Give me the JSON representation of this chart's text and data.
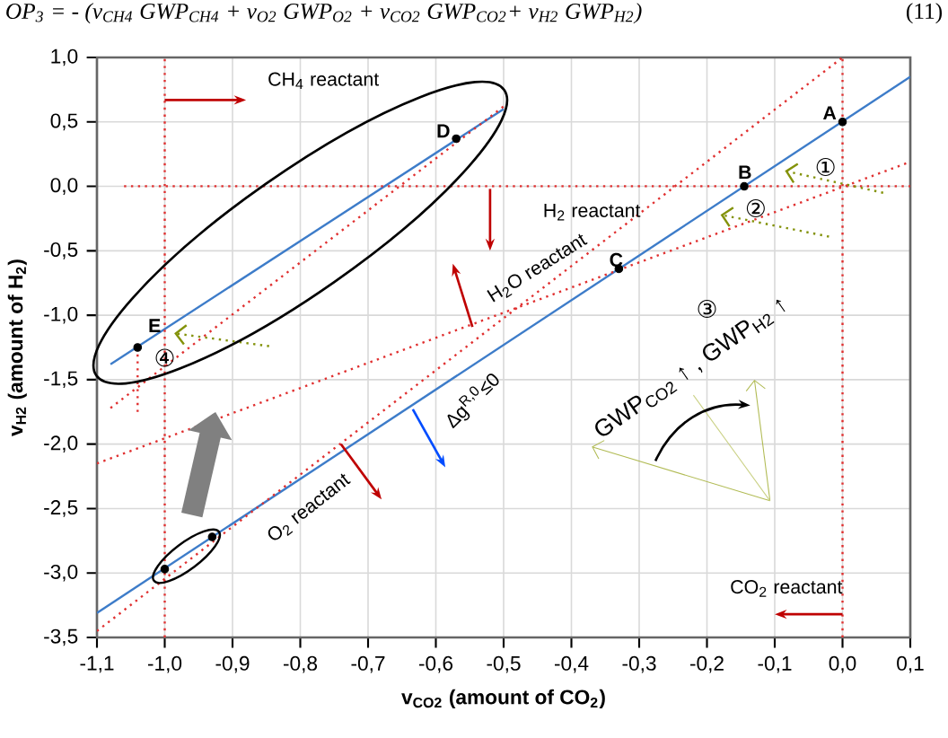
{
  "chart_data": {
    "type": "line",
    "xlabel": "v$_{CO2}$ (amount of CO$_{2}$)",
    "ylabel": "v$_{H2}$ (amount of H$_{2}$)",
    "xlim": [
      -1.1,
      0.1
    ],
    "ylim": [
      -3.5,
      1.0
    ],
    "xticks": [
      {
        "value": -1.1,
        "label": "-1,1"
      },
      {
        "value": -1.0,
        "label": "-1,0"
      },
      {
        "value": -0.9,
        "label": "-0,9"
      },
      {
        "value": -0.8,
        "label": "-0,8"
      },
      {
        "value": -0.7,
        "label": "-0,7"
      },
      {
        "value": -0.6,
        "label": "-0,6"
      },
      {
        "value": -0.5,
        "label": "-0,5"
      },
      {
        "value": -0.4,
        "label": "-0,4"
      },
      {
        "value": -0.3,
        "label": "-0,3"
      },
      {
        "value": -0.2,
        "label": "-0,2"
      },
      {
        "value": -0.1,
        "label": "-0,1"
      },
      {
        "value": 0.0,
        "label": "0,0"
      },
      {
        "value": 0.1,
        "label": "0,1"
      }
    ],
    "yticks": [
      {
        "value": -3.5,
        "label": "-3,5"
      },
      {
        "value": -3.0,
        "label": "-3,0"
      },
      {
        "value": -2.5,
        "label": "-2,5"
      },
      {
        "value": -2.0,
        "label": "-2,0"
      },
      {
        "value": -1.5,
        "label": "-1,5"
      },
      {
        "value": -1.0,
        "label": "-1,0"
      },
      {
        "value": -0.5,
        "label": "-0,5"
      },
      {
        "value": 0.0,
        "label": "0,0"
      },
      {
        "value": 0.5,
        "label": "0,5"
      },
      {
        "value": 1.0,
        "label": "1,0"
      }
    ],
    "grid": true,
    "series": [
      {
        "color": "#3d7cc9",
        "line_style": "solid",
        "x": [
          -1.1,
          0.1
        ],
        "values": [
          -3.31,
          0.85
        ]
      },
      {
        "color": "#3d7cc9",
        "line_style": "solid",
        "x": [
          -1.08,
          -0.5
        ],
        "values": [
          -1.38,
          0.6
        ]
      },
      {
        "color": "#e03030",
        "line_style": "dotted",
        "x": [
          -1.1,
          0.0
        ],
        "values": [
          -3.45,
          1.0
        ]
      },
      {
        "color": "#e03030",
        "line_style": "dotted",
        "x": [
          -1.1,
          0.1
        ],
        "values": [
          -2.15,
          0.19
        ]
      },
      {
        "color": "#e03030",
        "line_style": "dotted",
        "x": [
          -1.08,
          -0.5
        ],
        "values": [
          -1.72,
          0.62
        ]
      },
      {
        "color": "#e03030",
        "line_style": "dotted",
        "x": [
          -1.06,
          0.1
        ],
        "values": [
          0.0,
          0.0
        ]
      },
      {
        "color": "#e03030",
        "line_style": "dotted",
        "x": [
          -1.0,
          -1.0
        ],
        "values": [
          -3.5,
          1.0
        ]
      },
      {
        "color": "#e03030",
        "line_style": "dotted",
        "x": [
          0.0,
          0.0
        ],
        "values": [
          -3.5,
          1.0
        ]
      },
      {
        "color": "#e03030",
        "line_style": "dotted",
        "x": [
          -1.04,
          -1.04
        ],
        "values": [
          -1.25,
          -1.75
        ]
      },
      {
        "type": "scatter",
        "color": "#000000",
        "marker": "circle",
        "x": [
          0.0,
          -0.145,
          -0.33,
          -0.57,
          -1.04,
          -1.0,
          -0.93
        ],
        "values": [
          0.5,
          0.0,
          -0.64,
          0.37,
          -1.25,
          -2.97,
          -2.72
        ]
      }
    ],
    "annotations": [
      "OP$_{3}$ = - (v$_{CH4}$ GWP$_{CH4}$ + v$_{O2}$ GWP$_{O2}$ + v$_{CO2}$ GWP$_{CO2}$+ v$_{H2}$ GWP$_{H2}$)",
      "(11)",
      "CH$_{4}$ reactant",
      "H$_{2}$ reactant",
      "H$_{2}$O reactant",
      "O$_{2}$ reactant",
      "Δg$^{R,0}$≤0",
      "CO$_{2}$ reactant",
      "GWP$_{CO2}$ ↑ , GWP$_{H2}$ ↑",
      {
        "text": "①",
        "x": -0.085,
        "y": 0.12
      },
      "②",
      "③",
      "④",
      "A",
      "B",
      "C",
      "D",
      "E"
    ]
  }
}
